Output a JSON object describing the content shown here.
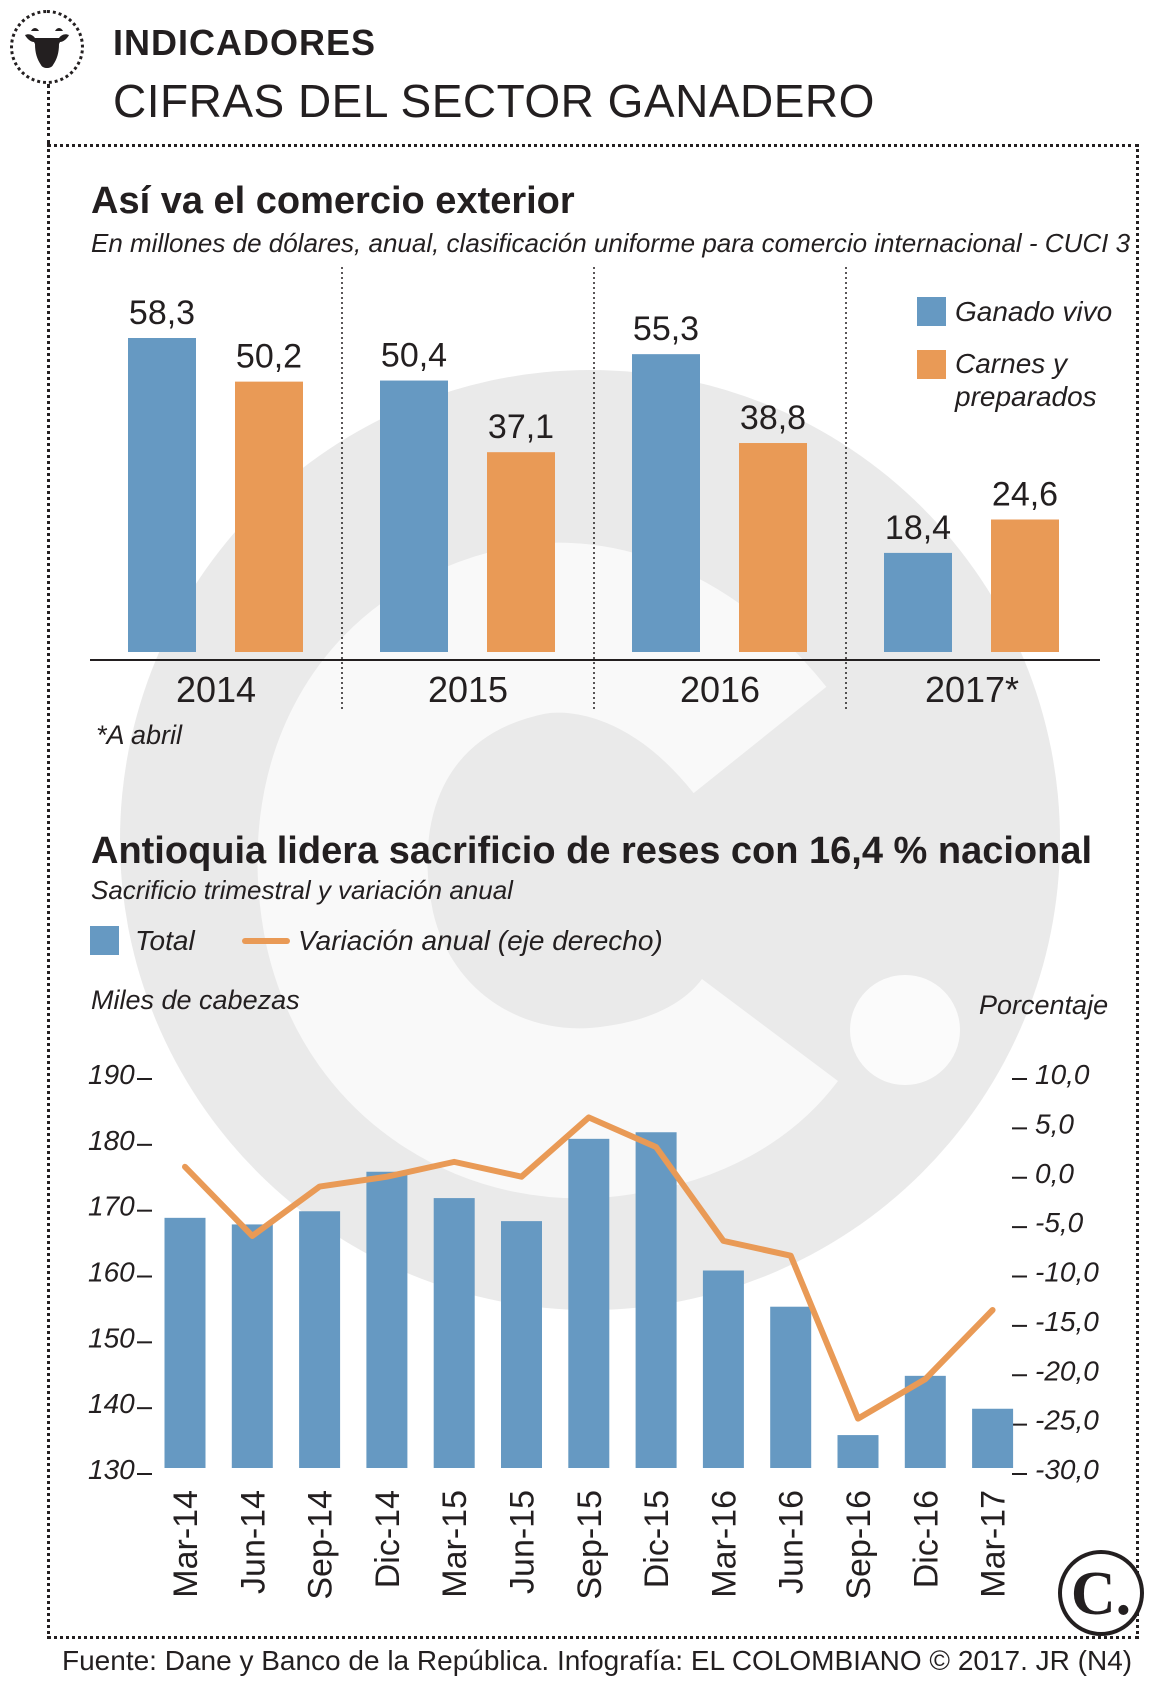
{
  "header": {
    "kicker": "INDICADORES",
    "title": "CIFRAS DEL SECTOR GANADERO",
    "icon": "cow-head-icon"
  },
  "colors": {
    "blue": "#6699c2",
    "orange": "#e99a56",
    "watermark": "#d9d9d9",
    "text": "#231f20"
  },
  "chart_data": [
    {
      "type": "bar",
      "title": "Así va el comercio exterior",
      "subtitle": "En millones de dólares, anual, clasificación uniforme para comercio internacional - CUCI 3",
      "categories": [
        "2014",
        "2015",
        "2016",
        "2017*"
      ],
      "series": [
        {
          "name": "Ganado vivo",
          "color": "#6699c2",
          "values": [
            58.3,
            50.4,
            55.3,
            18.4
          ],
          "labels": [
            "58,3",
            "50,4",
            "55,3",
            "18,4"
          ]
        },
        {
          "name": "Carnes y preparados",
          "color": "#e99a56",
          "values": [
            50.2,
            37.1,
            38.8,
            24.6
          ],
          "labels": [
            "50,2",
            "37,1",
            "38,8",
            "24,6"
          ]
        }
      ],
      "legend": [
        "Ganado vivo",
        "Carnes y",
        "preparados"
      ],
      "note": "*A abril",
      "ylim": [
        0,
        60
      ]
    },
    {
      "type": "bar",
      "title": "Antioquia lidera sacrificio de reses con 16,4 % nacional",
      "subtitle": "Sacrificio trimestral y variación anual",
      "legend": [
        "Total",
        "Variación anual (eje derecho)"
      ],
      "ylabel": "Miles de cabezas",
      "y2label": "Porcentaje",
      "categories": [
        "Mar-14",
        "Jun-14",
        "Sep-14",
        "Dic-14",
        "Mar-15",
        "Jun-15",
        "Sep-15",
        "Dic-15",
        "Mar-16",
        "Jun-16",
        "Sep-16",
        "Dic-16",
        "Mar-17"
      ],
      "series": [
        {
          "name": "Total",
          "type": "bar",
          "axis": "left",
          "color": "#6699c2",
          "values": [
            168,
            167,
            169,
            175,
            171,
            167.5,
            180,
            181,
            160,
            154.5,
            135,
            144,
            139
          ]
        },
        {
          "name": "Variación anual (eje derecho)",
          "type": "line",
          "axis": "right",
          "color": "#e99a56",
          "values": [
            0.5,
            -6.5,
            -1.5,
            -0.5,
            1.0,
            -0.5,
            5.5,
            2.5,
            -7.0,
            -8.5,
            -25.0,
            -21.0,
            -14.0
          ]
        }
      ],
      "ylim": [
        130,
        190
      ],
      "yticks": [
        "190",
        "180",
        "170",
        "160",
        "150",
        "140",
        "130"
      ],
      "y2lim": [
        -30,
        10
      ],
      "y2ticks": [
        "10,0",
        "5,0",
        "0,0",
        "-5,0",
        "-10,0",
        "-15,0",
        "-20,0",
        "-25,0",
        "-30,0"
      ]
    }
  ],
  "footer": {
    "source": "Fuente: Dane y Banco de la República. Infografía: EL COLOMBIANO © 2017. JR (N4)",
    "logo": "C."
  }
}
